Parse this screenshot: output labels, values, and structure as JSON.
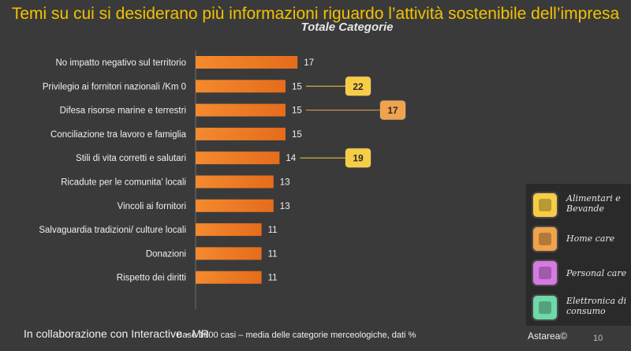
{
  "title": "Temi su cui si desiderano più informazioni riguardo l’attività sostenibile dell’impresa",
  "subtitle": "Totale Categorie",
  "chart_data": {
    "type": "bar",
    "orientation": "horizontal",
    "categories": [
      "No impatto negativo sul territorio",
      "Privilegio ai fornitori nazionali /Km 0",
      "Difesa  risorse marine e terrestri",
      "Conciliazione tra lavoro e famiglia",
      "Stili di vita corretti  e salutari",
      "Ricadute per le comunita' locali",
      "Vincoli ai fornitori",
      "Salvaguardia tradizioni/ culture locali",
      "Donazioni",
      "Rispetto dei diritti"
    ],
    "values": [
      17,
      15,
      15,
      15,
      14,
      13,
      13,
      11,
      11,
      11
    ],
    "value_labels": [
      "17",
      "15",
      "15",
      "15",
      "14",
      "13",
      "13",
      "11",
      "11",
      "11"
    ],
    "callouts": [
      {
        "category_index": 1,
        "value": "22",
        "category": "Alimentari e Bevande",
        "color": "#f7cd45"
      },
      {
        "category_index": 2,
        "value": "17",
        "category": "Home care",
        "color": "#f0a24d"
      },
      {
        "category_index": 4,
        "value": "19",
        "category": "Alimentari e Bevande",
        "color": "#f7cd45"
      }
    ],
    "xlim": [
      0,
      45
    ],
    "bar_color": "#ef7d25",
    "grid": false
  },
  "legend": {
    "items": [
      {
        "label": "Alimentari e Bevande",
        "icon": "food-beverage-icon",
        "color": "#f7cd45"
      },
      {
        "label": "Home care",
        "icon": "home-care-icon",
        "color": "#f0a24d"
      },
      {
        "label": "Personal care",
        "icon": "personal-care-icon",
        "color": "#d67ae3"
      },
      {
        "label": "Elettronica di consumo",
        "icon": "electronics-icon",
        "color": "#6fd8a8"
      }
    ]
  },
  "footer": {
    "left": "In collaborazione con Interactive - MR",
    "base_note": "Base 1000 casi – media delle  categorie merceologiche,   dati %",
    "brand": "Astarea©",
    "page": "10"
  }
}
